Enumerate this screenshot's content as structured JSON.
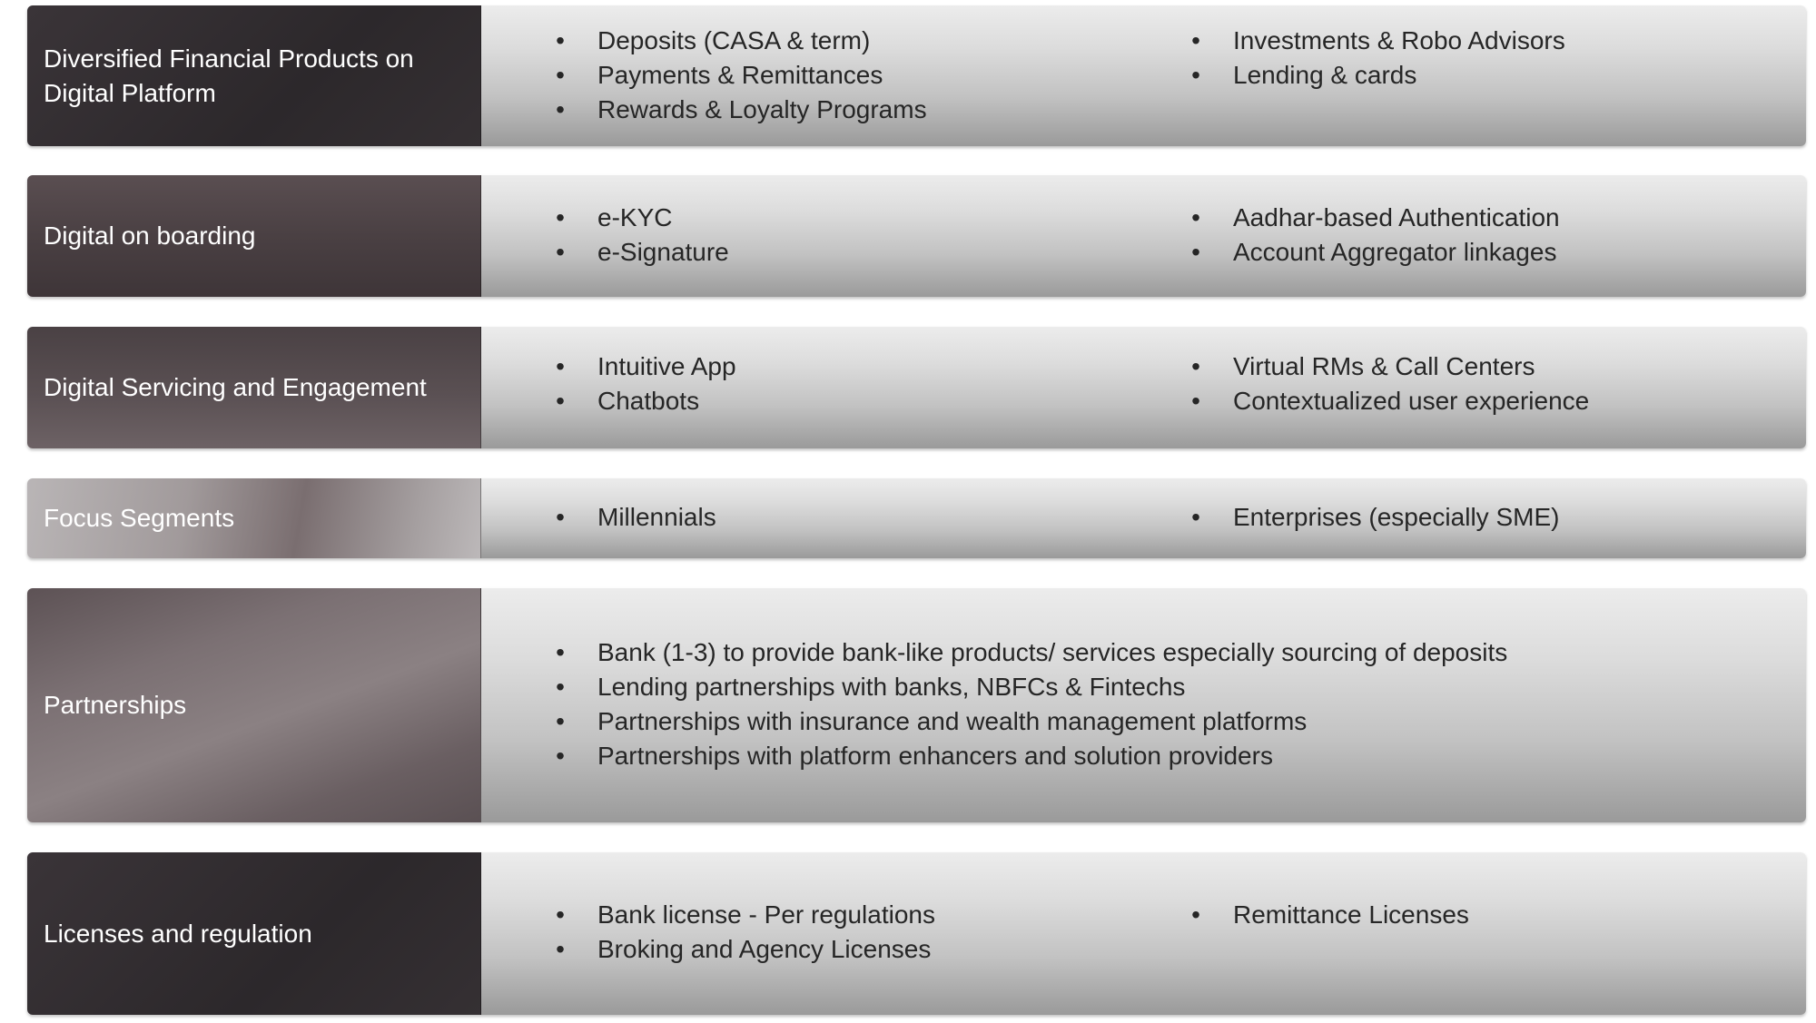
{
  "rows": [
    {
      "label": "Diversified Financial Products on Digital Platform",
      "left_items": [
        "Deposits (CASA & term)",
        "Payments & Remittances",
        "Rewards & Loyalty Programs"
      ],
      "right_items": [
        "Investments & Robo Advisors",
        "Lending & cards"
      ]
    },
    {
      "label": "Digital on boarding",
      "left_items": [
        "e-KYC",
        "e-Signature"
      ],
      "right_items": [
        "Aadhar-based Authentication",
        "Account Aggregator linkages"
      ]
    },
    {
      "label": "Digital Servicing and Engagement",
      "left_items": [
        "Intuitive App",
        "Chatbots"
      ],
      "right_items": [
        "Virtual RMs & Call Centers",
        "Contextualized user experience"
      ]
    },
    {
      "label": "Focus Segments",
      "left_items": [
        "Millennials"
      ],
      "right_items": [
        "Enterprises (especially SME)"
      ]
    },
    {
      "label": "Partnerships",
      "left_items": [
        "Bank (1-3) to provide bank-like products/ services especially sourcing of deposits",
        "Lending partnerships with banks, NBFCs & Fintechs",
        "Partnerships with insurance and wealth management platforms",
        "Partnerships with platform enhancers and solution providers"
      ],
      "right_items": []
    },
    {
      "label": "Licenses and regulation",
      "left_items": [
        "Bank license - Per regulations",
        "Broking and Agency Licenses"
      ],
      "right_items": [
        "Remittance Licenses"
      ]
    }
  ],
  "bullet_char": "•"
}
